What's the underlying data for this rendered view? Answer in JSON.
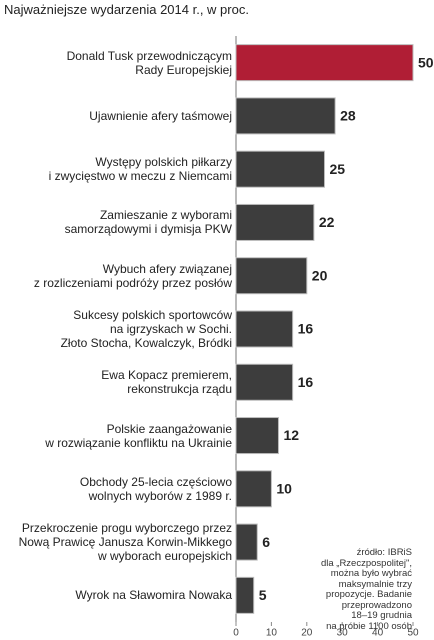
{
  "chart_data": {
    "type": "bar",
    "orientation": "horizontal",
    "title": "Najważniejsze wydarzenia 2014 r., w proc.",
    "categories": [
      "Donald Tusk przewodniczącym\nRady Europejskiej",
      "Ujawnienie afery taśmowej",
      "Występy polskich piłkarzy\ni zwycięstwo w meczu z Niemcami",
      "Zamieszanie z wyborami\nsamorządowymi i dymisja PKW",
      "Wybuch afery związanej\nz rozliczeniami podróży przez posłów",
      "Sukcesy polskich sportowców\nna igrzyskach w Sochi.\nZłoto Stocha, Kowalczyk, Bródki",
      "Ewa Kopacz premierem,\nrekonstrukcja rządu",
      "Polskie zaangażowanie\nw rozwiązanie konfliktu na Ukrainie",
      "Obchody 25-lecia częściowo\nwolnych wyborów z 1989 r.",
      "Przekroczenie progu wyborczego przez\nNową Prawicę Janusza Korwin-Mikkego\nw wyborach europejskich",
      "Wyrok na Sławomira Nowaka"
    ],
    "values": [
      50,
      28,
      25,
      22,
      20,
      16,
      16,
      12,
      10,
      6,
      5
    ],
    "colors": [
      "#b01e35",
      "#3d3d3d",
      "#3d3d3d",
      "#3d3d3d",
      "#3d3d3d",
      "#3d3d3d",
      "#3d3d3d",
      "#3d3d3d",
      "#3d3d3d",
      "#3d3d3d",
      "#3d3d3d"
    ],
    "xlim": [
      0,
      50
    ],
    "xticks": [
      0,
      10,
      20,
      30,
      40,
      50
    ],
    "note": "źródło: IBRiS\ndla „Rzeczpospolitej\",\nmożna było wybrać\nmaksymalnie trzy\npropozycje. Badanie\nprzeprowadzono\n18–19 grudnia\nna próbie 1100 osób"
  }
}
